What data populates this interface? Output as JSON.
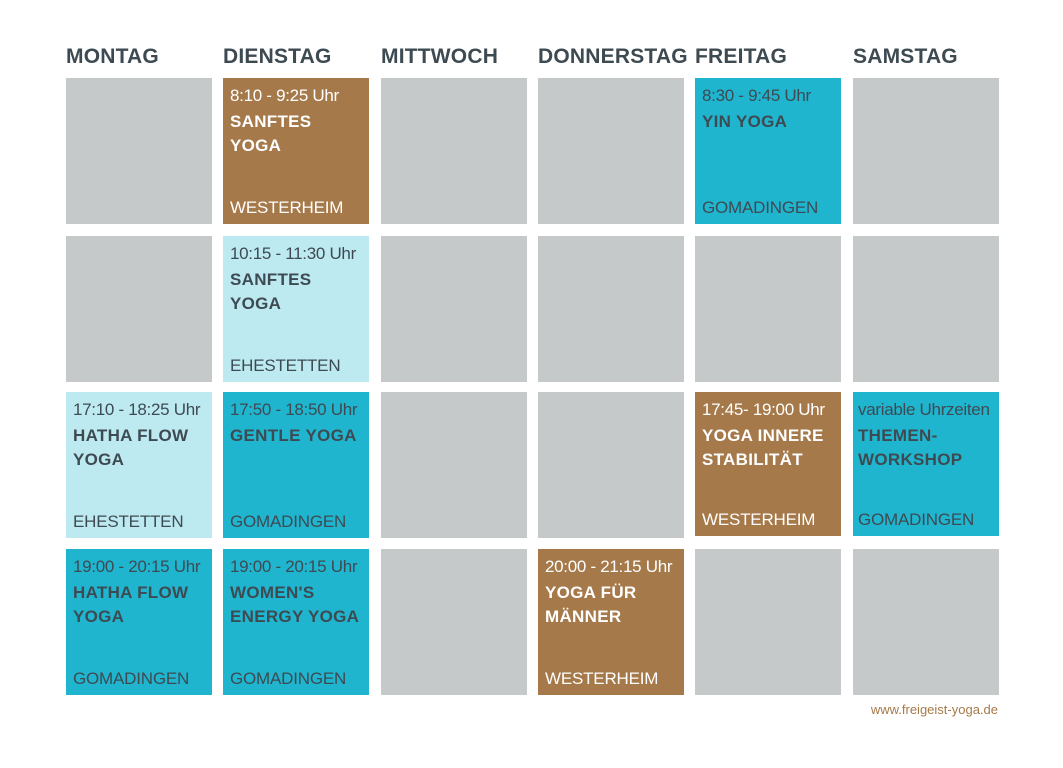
{
  "days": [
    "MONTAG",
    "DIENSTAG",
    "MITTWOCH",
    "DONNERSTAG",
    "FREITAG",
    "SAMSTAG"
  ],
  "classes": {
    "tue1": {
      "time": "8:10 - 9:25 Uhr",
      "title": "SANFTES YOGA",
      "place": "WESTERHEIM"
    },
    "fri1": {
      "time": "8:30 - 9:45 Uhr",
      "title": "YIN YOGA",
      "place": "GOMADINGEN"
    },
    "tue2": {
      "time": "10:15 - 11:30 Uhr",
      "title": "SANFTES YOGA",
      "place": "EHESTETTEN"
    },
    "mon3": {
      "time": "17:10 - 18:25 Uhr",
      "title": "HATHA FLOW YOGA",
      "place": "EHESTETTEN"
    },
    "tue3": {
      "time": "17:50 - 18:50 Uhr",
      "title": "GENTLE YOGA",
      "place": "GOMADINGEN"
    },
    "fri3": {
      "time": "17:45- 19:00 Uhr",
      "title": "YOGA INNERE STABILITÄT",
      "place": "WESTERHEIM"
    },
    "sat3": {
      "time": "variable Uhrzeiten",
      "title": "THEMEN-WORKSHOP",
      "place": "GOMADINGEN"
    },
    "mon4": {
      "time": "19:00 - 20:15 Uhr",
      "title": "HATHA FLOW YOGA",
      "place": "GOMADINGEN"
    },
    "tue4": {
      "time": "19:00 - 20:15 Uhr",
      "title": "WOMEN'S ENERGY YOGA",
      "place": "GOMADINGEN"
    },
    "thu4": {
      "time": "20:00 - 21:15 Uhr",
      "title": "YOGA FÜR MÄNNER",
      "place": "WESTERHEIM"
    }
  },
  "footer": {
    "url": "www.freigeist-yoga.de"
  },
  "colors": {
    "empty": "#c5c9ca",
    "westerheim": "#a6794a",
    "gomadingen": "#20b5cf",
    "ehestetten": "#bdeaf0",
    "heading": "#3e4a52"
  }
}
